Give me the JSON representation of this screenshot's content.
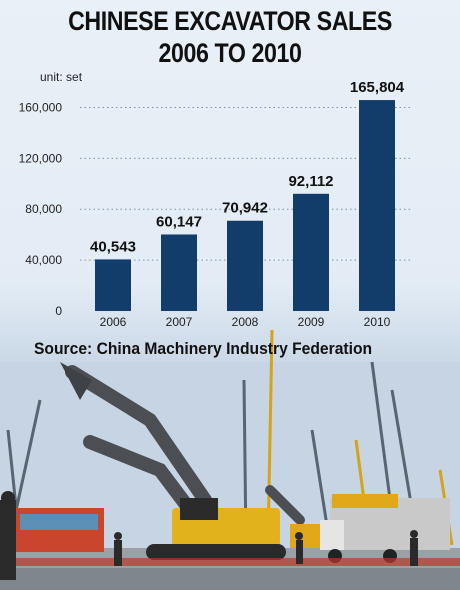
{
  "title_line1": "CHINESE EXCAVATOR SALES",
  "title_line2": "2006 TO 2010",
  "unit_label": "unit: set",
  "source": "Source: China Machinery Industry Federation",
  "colors": {
    "bar": "#123d6b",
    "background": "#e6eef6"
  },
  "photo": {
    "description_icon": "excavator-photo"
  },
  "chart_data": {
    "type": "bar",
    "title": "CHINESE EXCAVATOR SALES 2006 TO 2010",
    "xlabel": "",
    "ylabel": "unit: set",
    "categories": [
      "2006",
      "2007",
      "2008",
      "2009",
      "2010"
    ],
    "values": [
      40543,
      60147,
      70942,
      92112,
      165804
    ],
    "value_labels": [
      "40,543",
      "60,147",
      "70,942",
      "92,112",
      "165,804"
    ],
    "yticks": [
      0,
      40000,
      80000,
      120000,
      160000
    ],
    "ytick_labels": [
      "0",
      "40,000",
      "80,000",
      "120,000",
      "160,000"
    ],
    "ylim": [
      0,
      180000
    ],
    "grid": "dotted horizontal"
  }
}
